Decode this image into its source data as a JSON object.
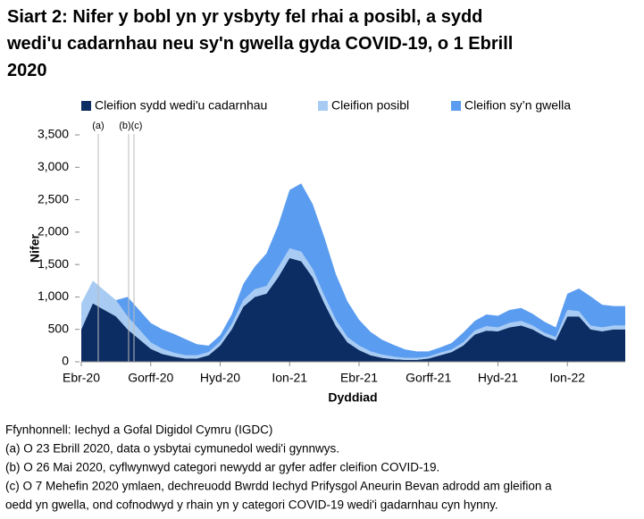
{
  "chart_data": {
    "type": "stacked_area",
    "title": "Siart 2: Nifer y bobl yn yr ysbyty fel rhai a posibl, a sydd wedi'u cadarnhau neu sy'n gwella gyda COVID-19, o 1 Ebrill 2020",
    "x_label": "Dyddiad",
    "y_label": "Nifer",
    "categories": [
      "Ebr-20",
      null,
      null,
      null,
      null,
      null,
      "Gorff-20",
      null,
      null,
      null,
      null,
      null,
      "Hyd-20",
      null,
      null,
      null,
      null,
      null,
      "Ion-21",
      null,
      null,
      null,
      null,
      null,
      "Ebr-21",
      null,
      null,
      null,
      null,
      null,
      "Gorff-21",
      null,
      null,
      null,
      null,
      null,
      "Hyd-21",
      null,
      null,
      null,
      null,
      null,
      "Ion-22",
      null,
      null,
      null,
      null,
      null
    ],
    "series": [
      {
        "name": "Cleifion sydd wedi'u cadarnhau",
        "color": "#0c2d63",
        "values": [
          500,
          900,
          800,
          700,
          500,
          350,
          200,
          120,
          80,
          50,
          50,
          100,
          250,
          500,
          850,
          1000,
          1050,
          1300,
          1600,
          1550,
          1300,
          900,
          550,
          300,
          180,
          100,
          60,
          40,
          30,
          30,
          50,
          100,
          150,
          250,
          420,
          480,
          470,
          530,
          560,
          500,
          400,
          330,
          700,
          700,
          500,
          470,
          500,
          500
        ]
      },
      {
        "name": "Cleifion posibl",
        "color": "#a8cbf3",
        "values": [
          400,
          350,
          300,
          250,
          200,
          150,
          100,
          80,
          60,
          50,
          50,
          50,
          60,
          80,
          100,
          120,
          120,
          150,
          150,
          150,
          130,
          120,
          100,
          80,
          70,
          60,
          50,
          40,
          30,
          30,
          30,
          40,
          40,
          50,
          60,
          70,
          60,
          70,
          70,
          60,
          50,
          50,
          100,
          80,
          60,
          60,
          60,
          60
        ]
      },
      {
        "name": "Cleifion sy’n gwella",
        "color": "#5a9cf0",
        "values": [
          0,
          0,
          0,
          0,
          300,
          300,
          300,
          300,
          290,
          250,
          170,
          100,
          100,
          150,
          250,
          350,
          500,
          650,
          900,
          1050,
          1000,
          900,
          700,
          550,
          400,
          300,
          230,
          180,
          130,
          100,
          80,
          80,
          100,
          150,
          150,
          180,
          180,
          200,
          200,
          180,
          170,
          150,
          250,
          350,
          450,
          350,
          300,
          300
        ]
      }
    ],
    "ylim": [
      0,
      3500
    ],
    "yticks": [
      0,
      500,
      {
        "value": 1000,
        "label": "1,000"
      },
      {
        "value": 1500,
        "label": "1,500"
      },
      {
        "value": 2000,
        "label": "2,000"
      },
      {
        "value": 2500,
        "label": "2,500"
      },
      {
        "value": 3000,
        "label": "3,000"
      },
      {
        "value": 3500,
        "label": "3,500"
      }
    ],
    "grid": false,
    "annotations": [
      "(a)",
      "(b)",
      "(c)"
    ],
    "notes": [
      "Ffynhonnell: Iechyd a Gofal Digidol Cymru (IGDC)",
      "(a) O 23 Ebrill 2020, data o ysbytai cymunedol wedi'i gynnwys.",
      "(b) O 26 Mai 2020, cyflwynwyd categori newydd ar gyfer adfer cleifion COVID-19.",
      "(c) O 7 Mehefin 2020 ymlaen, dechreuodd Bwrdd Iechyd Prifysgol Aneurin Bevan adrodd am gleifion a",
      "oedd yn gwella, ond cofnodwyd y rhain yn y categori COVID-19 wedi'i gadarnhau cyn hynny."
    ]
  }
}
